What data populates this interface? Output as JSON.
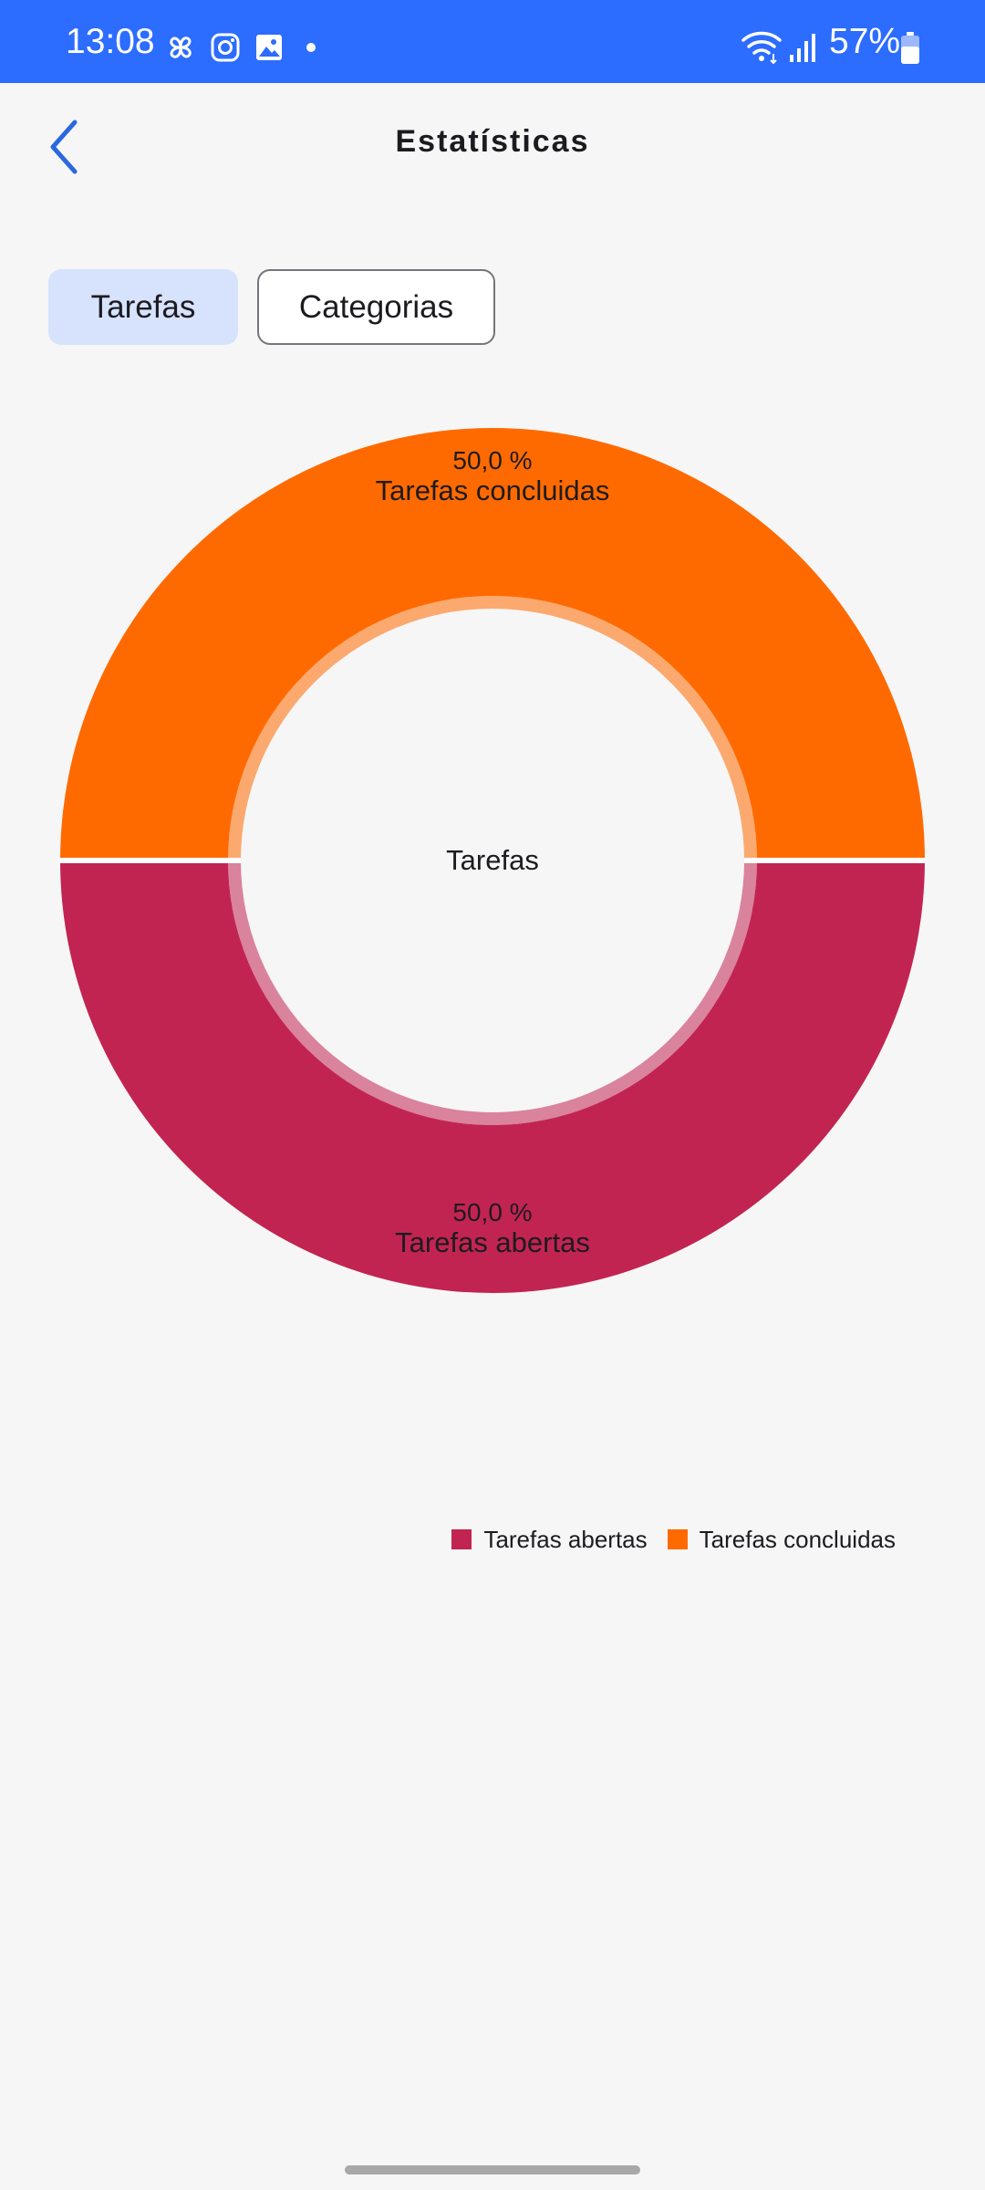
{
  "status_bar": {
    "time": "13:08",
    "battery": "57%",
    "icons": [
      "pinwheel-icon",
      "instagram-icon",
      "gallery-icon",
      "dot-icon",
      "wifi-icon",
      "signal-icon",
      "battery-icon"
    ]
  },
  "header": {
    "title": "Estatísticas",
    "back_icon": "chevron-left-icon"
  },
  "tabs": [
    {
      "label": "Tarefas",
      "selected": true
    },
    {
      "label": "Categorias",
      "selected": false
    }
  ],
  "chart_data": {
    "type": "pie",
    "center_label": "Tarefas",
    "slices": [
      {
        "name": "Tarefas concluidas",
        "value": 50.0,
        "label": "50,0 %",
        "color": "#ff6a00"
      },
      {
        "name": "Tarefas abertas",
        "value": 50.0,
        "label": "50,0 %",
        "color": "#c22452"
      }
    ],
    "legend": [
      {
        "name": "Tarefas abertas",
        "color": "#c22452"
      },
      {
        "name": "Tarefas concluidas",
        "color": "#ff6a00"
      }
    ],
    "legend_position": "bottom-right"
  },
  "colors": {
    "status_bar": "#2c6cff",
    "accent": "#2a68e0",
    "tab_selected_bg": "#d7e3fd"
  }
}
